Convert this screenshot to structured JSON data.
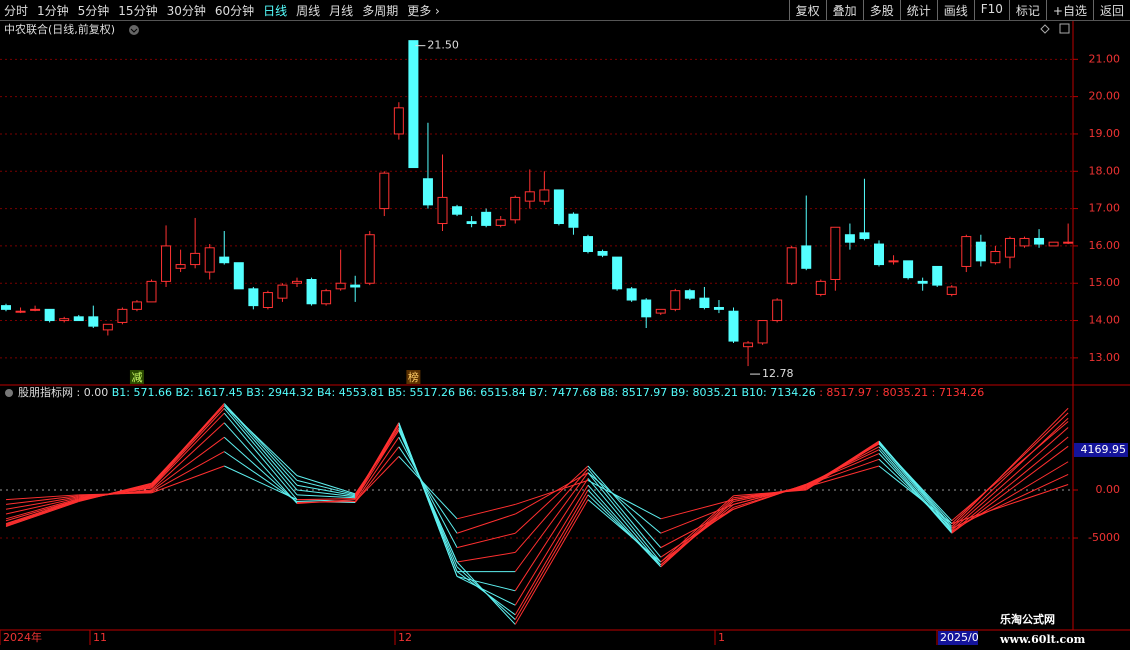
{
  "toolbar": {
    "left": [
      "分时",
      "1分钟",
      "5分钟",
      "15分钟",
      "30分钟",
      "60分钟",
      "日线",
      "周线",
      "月线",
      "多周期",
      "更多"
    ],
    "right": [
      "复权",
      "叠加",
      "多股",
      "统计",
      "画线",
      "F10",
      "标记",
      "+自选",
      "返回"
    ]
  },
  "stock_title": "中农联合(日线,前复权)",
  "chart_data": [
    {
      "type": "candlestick",
      "open": [
        14.4,
        14.25,
        14.3,
        14.3,
        14.0,
        14.1,
        14.1,
        13.75,
        13.95,
        14.3,
        14.5,
        15.05,
        15.4,
        15.5,
        15.3,
        15.7,
        15.55,
        14.85,
        14.35,
        14.6,
        15.0,
        15.1,
        14.45,
        14.85,
        14.95,
        15.0,
        17.0,
        19.0,
        21.5,
        17.8,
        16.6,
        17.05,
        16.65,
        16.9,
        16.55,
        16.7,
        17.2,
        17.2,
        17.5,
        16.85,
        16.25,
        15.85,
        15.7,
        14.85,
        14.55,
        14.2,
        14.3,
        14.8,
        14.6,
        14.35,
        14.25,
        13.3,
        13.4,
        14.0,
        15.0,
        16.0,
        14.7,
        15.1,
        16.3,
        16.35,
        16.05,
        15.6,
        15.6,
        15.05,
        15.45,
        14.7,
        15.45,
        16.1,
        15.55,
        15.7,
        16.0,
        16.2,
        16.0,
        16.1
      ],
      "high": [
        14.45,
        14.35,
        14.4,
        14.3,
        14.1,
        14.15,
        14.4,
        13.9,
        14.35,
        14.55,
        15.1,
        16.55,
        15.9,
        16.75,
        16.05,
        16.4,
        15.55,
        14.9,
        14.8,
        15.0,
        15.15,
        15.15,
        14.85,
        15.9,
        15.2,
        16.4,
        18.0,
        19.85,
        21.5,
        19.3,
        18.45,
        17.1,
        16.8,
        17.0,
        16.8,
        17.35,
        18.05,
        18.0,
        17.5,
        16.9,
        16.3,
        15.9,
        15.7,
        14.9,
        14.6,
        14.3,
        14.85,
        14.85,
        14.9,
        14.55,
        14.35,
        13.45,
        14.0,
        14.6,
        16.0,
        17.35,
        15.1,
        16.5,
        16.6,
        17.8,
        16.15,
        15.75,
        15.6,
        15.15,
        15.45,
        14.95,
        16.3,
        16.3,
        16.0,
        16.25,
        16.25,
        16.45,
        16.1,
        16.6
      ],
      "low": [
        14.25,
        14.2,
        14.25,
        13.95,
        13.95,
        14.0,
        13.8,
        13.6,
        13.9,
        14.25,
        14.5,
        14.9,
        15.3,
        15.4,
        15.1,
        15.5,
        14.85,
        14.3,
        14.3,
        14.5,
        14.9,
        14.4,
        14.4,
        14.8,
        14.5,
        14.95,
        16.8,
        18.85,
        18.1,
        17.0,
        16.4,
        16.8,
        16.5,
        16.5,
        16.5,
        16.6,
        17.0,
        17.1,
        16.55,
        16.3,
        15.8,
        15.7,
        14.8,
        14.5,
        13.8,
        14.15,
        14.25,
        14.55,
        14.3,
        14.2,
        13.4,
        12.78,
        13.35,
        13.95,
        14.95,
        15.35,
        14.65,
        14.8,
        15.9,
        16.15,
        15.45,
        15.5,
        15.1,
        14.8,
        14.9,
        14.65,
        15.3,
        15.45,
        15.5,
        15.4,
        15.95,
        15.95,
        16.0,
        16.05
      ],
      "close": [
        14.3,
        14.25,
        14.3,
        14.0,
        14.05,
        14.0,
        13.85,
        13.9,
        14.3,
        14.5,
        15.05,
        16.0,
        15.5,
        15.8,
        15.95,
        15.55,
        14.85,
        14.4,
        14.75,
        14.95,
        15.05,
        14.45,
        14.8,
        15.0,
        14.9,
        16.3,
        17.95,
        19.7,
        18.1,
        17.1,
        17.3,
        16.85,
        16.6,
        16.55,
        16.7,
        17.3,
        17.45,
        17.5,
        16.6,
        16.5,
        15.85,
        15.75,
        14.85,
        14.55,
        14.1,
        14.3,
        14.8,
        14.6,
        14.35,
        14.3,
        13.45,
        13.4,
        14.0,
        14.55,
        15.95,
        15.4,
        15.05,
        16.5,
        16.1,
        16.2,
        15.5,
        15.6,
        15.15,
        15.0,
        14.95,
        14.9,
        16.25,
        15.6,
        15.85,
        16.2,
        16.2,
        16.05,
        16.1,
        16.1
      ],
      "up_color": "#ff3232",
      "down_color": "#54ffff",
      "ylim": [
        12.3,
        22.0
      ],
      "yticks": [
        {
          "value": 13,
          "label": "13.00"
        },
        {
          "value": 14,
          "label": "14.00"
        },
        {
          "value": 15,
          "label": "15.00"
        },
        {
          "value": 16,
          "label": "16.00"
        },
        {
          "value": 17,
          "label": "17.00"
        },
        {
          "value": 18,
          "label": "18.00"
        },
        {
          "value": 19,
          "label": "19.00"
        },
        {
          "value": 20,
          "label": "20.00"
        },
        {
          "value": 21,
          "label": "21.00"
        }
      ],
      "grid": true,
      "high_label": {
        "value": 21.5,
        "label": "21.50"
      },
      "low_label": {
        "value": 12.78,
        "label": "12.78"
      }
    },
    {
      "type": "line",
      "title": "股朋指标网",
      "current": {
        "value": 0,
        "label": "0.00"
      },
      "x": [
        0,
        5,
        10,
        15,
        20,
        24,
        27,
        31,
        35,
        40,
        45,
        50,
        55,
        60,
        65,
        73
      ],
      "series": [
        {
          "name": "B1",
          "values": [
            -1000,
            -500,
            -300,
            2500,
            -1000,
            -1200,
            3500,
            -3000,
            -1500,
            1000,
            -3000,
            -1000,
            300,
            2500,
            -3500,
            571.66
          ]
        },
        {
          "name": "B2",
          "values": [
            -1500,
            -600,
            -200,
            4000,
            -1200,
            -1300,
            4500,
            -4500,
            -2500,
            1800,
            -4500,
            -1500,
            500,
            3200,
            -4000,
            1617.45
          ]
        },
        {
          "name": "B3",
          "values": [
            -2000,
            -700,
            -100,
            5500,
            -1300,
            -1200,
            5500,
            -6000,
            -4500,
            2500,
            -6000,
            -2000,
            600,
            3800,
            -4300,
            2944.32
          ]
        },
        {
          "name": "B4",
          "values": [
            -2500,
            -800,
            0,
            7000,
            -1400,
            -1000,
            6300,
            -7500,
            -6500,
            2200,
            -7000,
            -2000,
            600,
            4200,
            -4500,
            4553.81
          ]
        },
        {
          "name": "B5",
          "values": [
            -3000,
            -900,
            200,
            8000,
            -1000,
            -900,
            6800,
            -8500,
            -8500,
            1800,
            -7500,
            -1800,
            500,
            4500,
            -4400,
            5517.26
          ]
        },
        {
          "name": "B6",
          "values": [
            -3200,
            -1000,
            300,
            8500,
            -500,
            -800,
            7000,
            -9000,
            -10500,
            1200,
            -7800,
            -1500,
            400,
            4800,
            -4200,
            6515.84
          ]
        },
        {
          "name": "B7",
          "values": [
            -3500,
            -1000,
            400,
            8800,
            0,
            -700,
            7000,
            -9000,
            -12000,
            500,
            -8000,
            -1200,
            300,
            5000,
            -4000,
            7477.68
          ]
        },
        {
          "name": "B8",
          "values": [
            -3600,
            -1100,
            500,
            9000,
            500,
            -600,
            6800,
            -8500,
            -13000,
            0,
            -8000,
            -1000,
            200,
            5100,
            -3800,
            8517.97
          ]
        },
        {
          "name": "B9",
          "values": [
            -3700,
            -1100,
            600,
            9000,
            1000,
            -500,
            6500,
            -8000,
            -13500,
            -500,
            -7800,
            -800,
            100,
            5000,
            -3500,
            8035.21
          ]
        },
        {
          "name": "B10",
          "values": [
            -3800,
            -1200,
            700,
            8800,
            1500,
            -400,
            6200,
            -7500,
            -14000,
            -1000,
            -7500,
            -600,
            0,
            4900,
            -3200,
            7134.26
          ]
        }
      ],
      "up_color": "#ff3030",
      "down_color": "#5ef0f0",
      "ylim": [
        -14580,
        9375
      ],
      "yticks": [
        {
          "value": 0,
          "label": "0.00"
        },
        -5000
      ],
      "marker_value": 4169.95
    }
  ],
  "date_axis": [
    "2024年",
    "11",
    "12",
    "1",
    "2025/0"
  ],
  "signals": [
    "减",
    "榜"
  ],
  "watermark": {
    "title": "乐淘公式网",
    "url": "www.60lt.com"
  }
}
